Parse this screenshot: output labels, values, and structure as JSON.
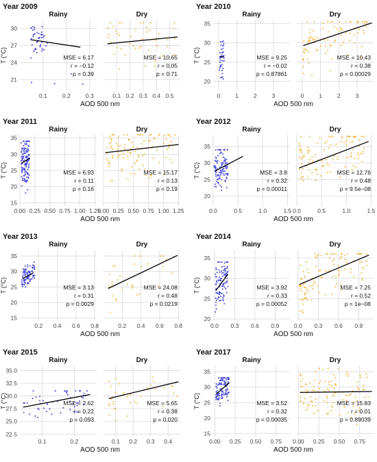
{
  "colors": {
    "rainy": "#3a3ad6",
    "dry": "#f0b030",
    "fit": "#000000",
    "grid": "#d8d8d8"
  },
  "chart_data": [
    {
      "type": "scatter",
      "title": "Year 2009",
      "xlabel": "AOD 500 nm",
      "ylabel": "T (°C)",
      "ylim": [
        19,
        31.5
      ],
      "yticks": [
        21,
        24,
        27,
        30
      ],
      "ytick_labels": [
        "21",
        "24",
        "27",
        "30"
      ],
      "panels": [
        {
          "name": "Rainy",
          "xlim": [
            0,
            0.33
          ],
          "xticks": [
            0.1,
            0.2,
            0.3
          ],
          "xtick_labels": [
            "0.1",
            "0.2",
            "0.3"
          ],
          "fit": [
            [
              0.05,
              28.0
            ],
            [
              0.26,
              26.7
            ]
          ],
          "stats": [
            "MSE = 6.17",
            "r = −0.12",
            "p = 0.39"
          ],
          "n": 45,
          "xmin": 0.04,
          "xmax": 0.12,
          "yspread": [
            24,
            30.3
          ],
          "extra": [
            [
              0.05,
              20.5
            ],
            [
              0.15,
              20.3
            ],
            [
              0.22,
              22.0
            ],
            [
              0.27,
              20.2
            ]
          ]
        },
        {
          "name": "Dry",
          "xlim": [
            0,
            0.58
          ],
          "xticks": [
            0.1,
            0.2,
            0.3,
            0.4,
            0.5
          ],
          "xtick_labels": [
            "0.1",
            "0.2",
            "0.3",
            "0.4",
            "0.5"
          ],
          "fit": [
            [
              0.03,
              27.3
            ],
            [
              0.56,
              28.5
            ]
          ],
          "stats": [
            "MSE = 10.65",
            "r = 0.05",
            "p = 0.71"
          ],
          "n": 45,
          "xmin": 0.03,
          "xmax": 0.55,
          "yspread": [
            21,
            31
          ],
          "extra": []
        }
      ]
    },
    {
      "type": "scatter",
      "title": "Year 2010",
      "xlabel": "AOD 500 nm",
      "ylabel": "T (°C)",
      "ylim": [
        17.5,
        36
      ],
      "yticks": [
        20,
        25,
        30,
        35
      ],
      "ytick_labels": [
        "20",
        "25",
        "30",
        "35"
      ],
      "panels": [
        {
          "name": "Rainy",
          "xlim": [
            -0.3,
            3.9
          ],
          "xticks": [
            0,
            1,
            2,
            3
          ],
          "xtick_labels": [
            "0",
            "1",
            "2",
            "3"
          ],
          "fit": [
            [
              0.05,
              26.5
            ],
            [
              0.3,
              26.4
            ]
          ],
          "stats": [
            "MSE = 9.25",
            "r = −0.02",
            "p = 0.87861"
          ],
          "n": 40,
          "xmin": 0.05,
          "xmax": 0.3,
          "yspread": [
            18,
            30.5
          ],
          "extra": []
        },
        {
          "name": "Dry",
          "xlim": [
            -0.3,
            3.9
          ],
          "xticks": [
            0,
            1,
            2,
            3
          ],
          "xtick_labels": [
            "0",
            "1",
            "2",
            "3"
          ],
          "fit": [
            [
              0.05,
              29.3
            ],
            [
              3.8,
              35.2
            ]
          ],
          "stats": [
            "MSE = 10.43",
            "r = 0.38",
            "p = 0.00029"
          ],
          "n": 90,
          "xmin": 0.05,
          "xmax": 3.6,
          "yspread": [
            20,
            35.5
          ],
          "extra": []
        }
      ]
    },
    {
      "type": "scatter",
      "title": "Year 2011",
      "xlabel": "AOD 500 nm",
      "ylabel": "T (°C)",
      "ylim": [
        14,
        36
      ],
      "yticks": [
        15,
        20,
        25,
        30,
        35
      ],
      "ytick_labels": [
        "15",
        "20",
        "25",
        "30",
        "35"
      ],
      "panels": [
        {
          "name": "Rainy",
          "xlim": [
            0,
            1.28
          ],
          "xticks": [
            0,
            0.25,
            0.5,
            0.75,
            1.0,
            1.25
          ],
          "xtick_labels": [
            "0.00",
            "0.25",
            "0.50",
            "0.75",
            "1.00",
            "1.25"
          ],
          "fit": [
            [
              0.03,
              27.3
            ],
            [
              0.17,
              28.8
            ]
          ],
          "stats": [
            "MSE = 6.93",
            "r = 0.11",
            "p = 0.16"
          ],
          "n": 130,
          "xmin": 0.02,
          "xmax": 0.16,
          "yspread": [
            17,
            34
          ],
          "extra": []
        },
        {
          "name": "Dry",
          "xlim": [
            0,
            1.28
          ],
          "xticks": [
            0,
            0.25,
            0.5,
            0.75,
            1.0,
            1.25
          ],
          "xtick_labels": [
            "0.00",
            "0.25",
            "0.50",
            "0.75",
            "1.00",
            "1.25"
          ],
          "fit": [
            [
              0.03,
              30.5
            ],
            [
              1.25,
              33.0
            ]
          ],
          "stats": [
            "MSE = 15.17",
            "r = 0.13",
            "p = 0.19"
          ],
          "n": 110,
          "xmin": 0.05,
          "xmax": 1.2,
          "yspread": [
            18,
            36
          ],
          "extra": []
        }
      ]
    },
    {
      "type": "scatter",
      "title": "Year 2012",
      "xlabel": "AOD 500 nm",
      "ylabel": "T (°C)",
      "ylim": [
        17,
        38.5
      ],
      "yticks": [
        20,
        25,
        30,
        35
      ],
      "ytick_labels": [
        "20",
        "25",
        "30",
        "35"
      ],
      "panels": [
        {
          "name": "Rainy",
          "xlim": [
            0,
            1.55
          ],
          "xticks": [
            0,
            0.5,
            1.0,
            1.5
          ],
          "xtick_labels": [
            "0.0",
            "0.5",
            "1.0",
            "1.5"
          ],
          "fit": [
            [
              0.03,
              27.5
            ],
            [
              0.6,
              32.0
            ]
          ],
          "stats": [
            "MSE = 3.8",
            "r = 0.32",
            "p = 0.00011"
          ],
          "n": 110,
          "xmin": 0.02,
          "xmax": 0.3,
          "yspread": [
            20,
            34
          ],
          "extra": []
        },
        {
          "name": "Dry",
          "xlim": [
            0,
            1.55
          ],
          "xticks": [
            0,
            0.5,
            1.0,
            1.5
          ],
          "xtick_labels": [
            "0.0",
            "0.5",
            "1.0",
            "1.5"
          ],
          "fit": [
            [
              0.05,
              28.5
            ],
            [
              1.45,
              36.5
            ]
          ],
          "stats": [
            "MSE = 12.76",
            "r = 0.48",
            "p = 9.5e−08"
          ],
          "n": 110,
          "xmin": 0.05,
          "xmax": 1.4,
          "yspread": [
            20,
            38
          ],
          "extra": []
        }
      ]
    },
    {
      "type": "scatter",
      "title": "Year 2013",
      "xlabel": "AOD 500 nm",
      "ylabel": "T (°C)",
      "ylim": [
        14,
        37
      ],
      "yticks": [
        15,
        20,
        25,
        30,
        35
      ],
      "ytick_labels": [
        "15",
        "20",
        "25",
        "30",
        "35"
      ],
      "panels": [
        {
          "name": "Rainy",
          "xlim": [
            0,
            0.82
          ],
          "xticks": [
            0.2,
            0.4,
            0.6,
            0.8
          ],
          "xtick_labels": [
            "0.2",
            "0.4",
            "0.6",
            "0.8"
          ],
          "fit": [
            [
              0.03,
              27.7
            ],
            [
              0.14,
              29.5
            ]
          ],
          "stats": [
            "MSE = 3.13",
            "r = 0.31",
            "p = 0.0029"
          ],
          "n": 90,
          "xmin": 0.02,
          "xmax": 0.16,
          "yspread": [
            25,
            33
          ],
          "extra": []
        },
        {
          "name": "Dry",
          "xlim": [
            0,
            0.82
          ],
          "xticks": [
            0.2,
            0.4,
            0.6,
            0.8
          ],
          "xtick_labels": [
            "0.2",
            "0.4",
            "0.6",
            "0.8"
          ],
          "fit": [
            [
              0.05,
              24.5
            ],
            [
              0.79,
              35.2
            ]
          ],
          "stats": [
            "MSE = 24.08",
            "r = 0.48",
            "p = 0.0219"
          ],
          "n": 30,
          "xmin": 0.05,
          "xmax": 0.78,
          "yspread": [
            16,
            35
          ],
          "extra": []
        }
      ]
    },
    {
      "type": "scatter",
      "title": "Year 2014",
      "xlabel": "AOD 500 nm",
      "ylabel": "T (°C)",
      "ylim": [
        19.5,
        37
      ],
      "yticks": [
        20,
        25,
        30,
        35
      ],
      "ytick_labels": [
        "20",
        "25",
        "30",
        "35"
      ],
      "panels": [
        {
          "name": "Rainy",
          "xlim": [
            -0.02,
            1.12
          ],
          "xticks": [
            0,
            0.3,
            0.6,
            0.9
          ],
          "xtick_labels": [
            "0.0",
            "0.3",
            "0.6",
            "0.9"
          ],
          "fit": [
            [
              0.02,
              27.0
            ],
            [
              0.2,
              31.0
            ]
          ],
          "stats": [
            "MSE = 3.92",
            "r = 0.33",
            "p = 0.00052"
          ],
          "n": 100,
          "xmin": 0.01,
          "xmax": 0.2,
          "yspread": [
            21,
            34
          ],
          "extra": []
        },
        {
          "name": "Dry",
          "xlim": [
            -0.02,
            1.12
          ],
          "xticks": [
            0,
            0.3,
            0.6,
            0.9
          ],
          "xtick_labels": [
            "0.0",
            "0.3",
            "0.6",
            "0.9"
          ],
          "fit": [
            [
              0.02,
              28.5
            ],
            [
              1.05,
              35.7
            ]
          ],
          "stats": [
            "MSE = 7.25",
            "r = 0.52",
            "p = 1e−08"
          ],
          "n": 110,
          "xmin": 0.02,
          "xmax": 1.05,
          "yspread": [
            21,
            36
          ],
          "extra": []
        }
      ]
    },
    {
      "type": "scatter",
      "title": "Year 2015",
      "xlabel": "AOD 500 nm",
      "ylabel": "T (°C)",
      "ylim": [
        22,
        36
      ],
      "yticks": [
        22.5,
        25.0,
        27.5,
        30.0,
        32.5,
        35.0
      ],
      "ytick_labels": [
        "22.5",
        "25.0",
        "27.5",
        "30.0",
        "32.5",
        "35.0"
      ],
      "panels": [
        {
          "name": "Rainy",
          "xlim": [
            0.03,
            0.27
          ],
          "xticks": [
            0.1,
            0.2
          ],
          "xtick_labels": [
            "0.1",
            "0.2"
          ],
          "fit": [
            [
              0.04,
              27.8
            ],
            [
              0.25,
              30.3
            ]
          ],
          "stats": [
            "MSE = 2.62",
            "r = 0.22",
            "p = 0.093"
          ],
          "n": 55,
          "xmin": 0.04,
          "xmax": 0.24,
          "yspread": [
            24,
            31
          ],
          "extra": []
        },
        {
          "name": "Dry",
          "xlim": [
            0.03,
            0.47
          ],
          "xticks": [
            0.1,
            0.2,
            0.3,
            0.4
          ],
          "xtick_labels": [
            "0.1",
            "0.2",
            "0.3",
            "0.4"
          ],
          "fit": [
            [
              0.06,
              29.5
            ],
            [
              0.46,
              32.8
            ]
          ],
          "stats": [
            "MSE = 5.65",
            "r = 0.38",
            "p = 0.020"
          ],
          "n": 35,
          "xmin": 0.06,
          "xmax": 0.45,
          "yspread": [
            23,
            35
          ],
          "extra": []
        }
      ]
    },
    {
      "type": "scatter",
      "title": "Year 2017",
      "xlabel": "AOD 500 nm",
      "ylabel": "T (°C)",
      "ylim": [
        14,
        37
      ],
      "yticks": [
        15,
        20,
        25,
        30,
        35
      ],
      "ytick_labels": [
        "15",
        "20",
        "25",
        "30",
        "35"
      ],
      "panels": [
        {
          "name": "Rainy",
          "xlim": [
            -0.02,
            0.92
          ],
          "xticks": [
            0,
            0.25,
            0.5,
            0.75
          ],
          "xtick_labels": [
            "0.00",
            "0.25",
            "0.50",
            "0.75"
          ],
          "fit": [
            [
              0.02,
              27.8
            ],
            [
              0.18,
              31.5
            ]
          ],
          "stats": [
            "MSE = 3.52",
            "r = 0.32",
            "p = 0.00035"
          ],
          "n": 100,
          "xmin": 0.01,
          "xmax": 0.18,
          "yspread": [
            22,
            33
          ],
          "extra": []
        },
        {
          "name": "Dry",
          "xlim": [
            -0.02,
            0.92
          ],
          "xticks": [
            0,
            0.25,
            0.5,
            0.75
          ],
          "xtick_labels": [
            "0.00",
            "0.25",
            "0.50",
            "0.75"
          ],
          "fit": [
            [
              0.02,
              28.3
            ],
            [
              0.9,
              28.6
            ]
          ],
          "stats": [
            "MSE = 15.83",
            "r = 0.01",
            "p = 0.89039"
          ],
          "n": 110,
          "xmin": 0.02,
          "xmax": 0.88,
          "yspread": [
            16,
            36
          ],
          "extra": []
        }
      ]
    }
  ]
}
